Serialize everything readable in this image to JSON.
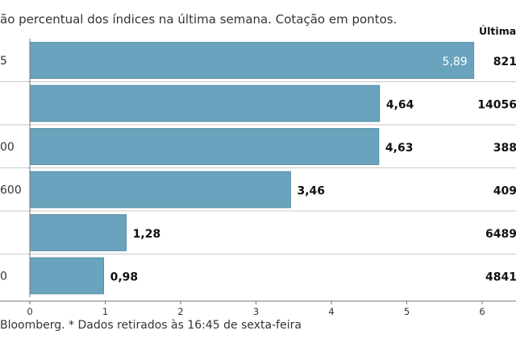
{
  "header": {
    "subtitle": "ão percentual dos índices na última semana. Cotação em pontos.",
    "last_column": "Última c"
  },
  "footer": {
    "source": "Bloomberg.  * Dados retirados às 16:45 de sexta-feira"
  },
  "colors": {
    "bar": "#6aa3bd",
    "separator": "#c9c9c9",
    "axis": "#777777"
  },
  "chart_data": {
    "type": "bar",
    "orientation": "horizontal",
    "categories": [
      "5",
      "",
      "00",
      "600",
      "",
      "0"
    ],
    "values": [
      5.89,
      4.64,
      4.63,
      3.46,
      1.28,
      0.98
    ],
    "value_labels": [
      "5,89",
      "4,64",
      "4,63",
      "3,46",
      "1,28",
      "0,98"
    ],
    "last_quote": [
      "821",
      "14056",
      "388",
      "409",
      "6489",
      "4841"
    ],
    "xlim": [
      0,
      6.3
    ],
    "xticks": [
      0,
      1,
      2,
      3,
      4,
      5,
      6
    ],
    "xtick_labels": [
      "0",
      "1",
      "2",
      "3",
      "4",
      "5",
      "6"
    ],
    "grid": false
  }
}
